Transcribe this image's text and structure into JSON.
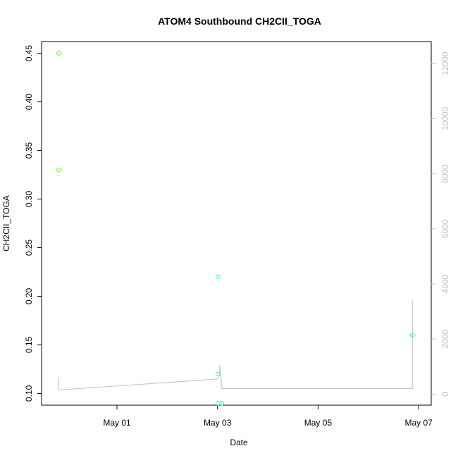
{
  "chart_data": {
    "type": "scatter",
    "title": "ATOM4 Southbound CH2CII_TOGA",
    "xlabel": "Date",
    "ylabel": "CH2CII_TOGA",
    "y2label": "",
    "x_range": [
      "2016-04-29T12:00",
      "2016-05-07T06:00"
    ],
    "xticks": [
      {
        "label": "May 01",
        "value": "2016-05-01T00:00"
      },
      {
        "label": "May 03",
        "value": "2016-05-03T00:00"
      },
      {
        "label": "May 05",
        "value": "2016-05-05T00:00"
      },
      {
        "label": "May 07",
        "value": "2016-05-07T00:00"
      }
    ],
    "ylim": [
      0.088,
      0.462
    ],
    "yticks": [
      0.1,
      0.15,
      0.2,
      0.25,
      0.3,
      0.35,
      0.4,
      0.45
    ],
    "ytick_labels": [
      "0.10",
      "0.15",
      "0.20",
      "0.25",
      "0.30",
      "0.35",
      "0.40",
      "0.45"
    ],
    "y2lim": [
      -400,
      12800
    ],
    "y2ticks": [
      0,
      2000,
      4000,
      6000,
      8000,
      10000,
      12000
    ],
    "y2tick_labels": [
      "0",
      "2000",
      "4000",
      "6000",
      "8000",
      "10000",
      "12000"
    ],
    "grid": false,
    "series": [
      {
        "marker": "open-circle",
        "points": [
          {
            "x": "2016-04-29T20:12",
            "y": 0.45,
            "color": "#66ff33"
          },
          {
            "x": "2016-04-29T20:12",
            "y": 0.33,
            "color": "#66ff33"
          },
          {
            "x": "2016-05-03T00:12",
            "y": 0.22,
            "color": "#33ffcc"
          },
          {
            "x": "2016-05-03T00:12",
            "y": 0.12,
            "color": "#33ffcc"
          },
          {
            "x": "2016-05-03T00:12",
            "y": 0.09,
            "color": "#33ffcc"
          },
          {
            "x": "2016-05-03T02:00",
            "y": 0.09,
            "color": "#33ffcc"
          },
          {
            "x": "2016-05-06T21:00",
            "y": 0.16,
            "color": "#33e6e6"
          }
        ]
      },
      {
        "type": "line",
        "axis": "right",
        "color": "#bfbfbf",
        "points": [
          {
            "x": "2016-04-29T20:12",
            "y2": 600
          },
          {
            "x": "2016-04-29T20:12",
            "y2": 150
          },
          {
            "x": "2016-05-03T00:00",
            "y2": 550
          },
          {
            "x": "2016-05-03T01:00",
            "y2": 800
          },
          {
            "x": "2016-05-03T01:00",
            "y2": 1050
          },
          {
            "x": "2016-05-03T02:10",
            "y2": 200
          },
          {
            "x": "2016-05-06T21:00",
            "y2": 200
          },
          {
            "x": "2016-05-06T21:00",
            "y2": 3400
          }
        ]
      }
    ]
  }
}
